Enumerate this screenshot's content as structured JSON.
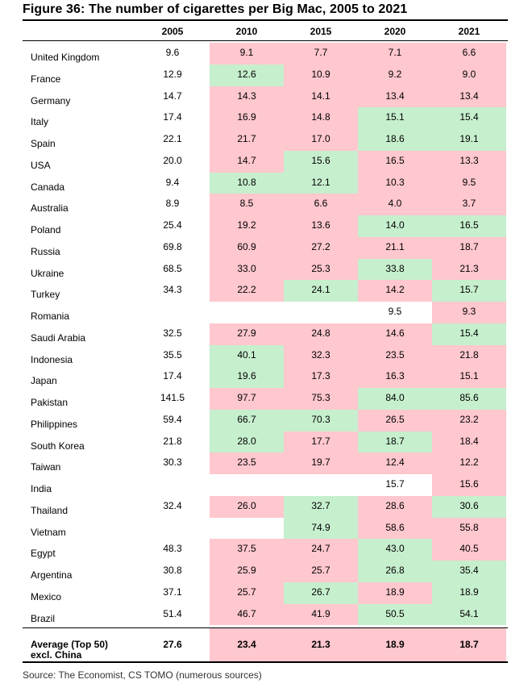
{
  "title": "Figure 36: The number of cigarettes per Big Mac, 2005 to 2021",
  "years": [
    "2005",
    "2010",
    "2015",
    "2020",
    "2021"
  ],
  "legend_colors": {
    "r": "#ffc7ce",
    "g": "#c6efce",
    "w": "#ffffff"
  },
  "rows": [
    {
      "country": "United Kingdom",
      "v2005": "9.6",
      "values": [
        "9.1",
        "7.7",
        "7.1",
        "6.6"
      ],
      "colors": [
        "r",
        "r",
        "r",
        "r"
      ]
    },
    {
      "country": "France",
      "v2005": "12.9",
      "values": [
        "12.6",
        "10.9",
        "9.2",
        "9.0"
      ],
      "colors": [
        "g",
        "r",
        "r",
        "r"
      ]
    },
    {
      "country": "Germany",
      "v2005": "14.7",
      "values": [
        "14.3",
        "14.1",
        "13.4",
        "13.4"
      ],
      "colors": [
        "r",
        "r",
        "r",
        "r"
      ]
    },
    {
      "country": "Italy",
      "v2005": "17.4",
      "values": [
        "16.9",
        "14.8",
        "15.1",
        "15.4"
      ],
      "colors": [
        "r",
        "r",
        "g",
        "g"
      ]
    },
    {
      "country": "Spain",
      "v2005": "22.1",
      "values": [
        "21.7",
        "17.0",
        "18.6",
        "19.1"
      ],
      "colors": [
        "r",
        "r",
        "g",
        "g"
      ]
    },
    {
      "country": "USA",
      "v2005": "20.0",
      "values": [
        "14.7",
        "15.6",
        "16.5",
        "13.3"
      ],
      "colors": [
        "r",
        "g",
        "r",
        "r"
      ]
    },
    {
      "country": "Canada",
      "v2005": "9.4",
      "values": [
        "10.8",
        "12.1",
        "10.3",
        "9.5"
      ],
      "colors": [
        "g",
        "g",
        "r",
        "r"
      ]
    },
    {
      "country": "Australia",
      "v2005": "8.9",
      "values": [
        "8.5",
        "6.6",
        "4.0",
        "3.7"
      ],
      "colors": [
        "r",
        "r",
        "r",
        "r"
      ]
    },
    {
      "country": "Poland",
      "v2005": "25.4",
      "values": [
        "19.2",
        "13.6",
        "14.0",
        "16.5"
      ],
      "colors": [
        "r",
        "r",
        "g",
        "g"
      ]
    },
    {
      "country": "Russia",
      "v2005": "69.8",
      "values": [
        "60.9",
        "27.2",
        "21.1",
        "18.7"
      ],
      "colors": [
        "r",
        "r",
        "r",
        "r"
      ]
    },
    {
      "country": "Ukraine",
      "v2005": "68.5",
      "values": [
        "33.0",
        "25.3",
        "33.8",
        "21.3"
      ],
      "colors": [
        "r",
        "r",
        "g",
        "r"
      ]
    },
    {
      "country": "Turkey",
      "v2005": "34.3",
      "values": [
        "22.2",
        "24.1",
        "14.2",
        "15.7"
      ],
      "colors": [
        "r",
        "g",
        "r",
        "g"
      ]
    },
    {
      "country": "Romania",
      "v2005": "",
      "values": [
        "",
        "",
        "9.5",
        "9.3"
      ],
      "colors": [
        "w",
        "w",
        "w",
        "r"
      ]
    },
    {
      "country": "Saudi Arabia",
      "v2005": "32.5",
      "values": [
        "27.9",
        "24.8",
        "14.6",
        "15.4"
      ],
      "colors": [
        "r",
        "r",
        "r",
        "g"
      ]
    },
    {
      "country": "Indonesia",
      "v2005": "35.5",
      "values": [
        "40.1",
        "32.3",
        "23.5",
        "21.8"
      ],
      "colors": [
        "g",
        "r",
        "r",
        "r"
      ]
    },
    {
      "country": "Japan",
      "v2005": "17.4",
      "values": [
        "19.6",
        "17.3",
        "16.3",
        "15.1"
      ],
      "colors": [
        "g",
        "r",
        "r",
        "r"
      ]
    },
    {
      "country": "Pakistan",
      "v2005": "141.5",
      "values": [
        "97.7",
        "75.3",
        "84.0",
        "85.6"
      ],
      "colors": [
        "r",
        "r",
        "g",
        "g"
      ]
    },
    {
      "country": "Philippines",
      "v2005": "59.4",
      "values": [
        "66.7",
        "70.3",
        "26.5",
        "23.2"
      ],
      "colors": [
        "g",
        "g",
        "r",
        "r"
      ]
    },
    {
      "country": "South Korea",
      "v2005": "21.8",
      "values": [
        "28.0",
        "17.7",
        "18.7",
        "18.4"
      ],
      "colors": [
        "g",
        "r",
        "g",
        "r"
      ]
    },
    {
      "country": "Taiwan",
      "v2005": "30.3",
      "values": [
        "23.5",
        "19.7",
        "12.4",
        "12.2"
      ],
      "colors": [
        "r",
        "r",
        "r",
        "r"
      ]
    },
    {
      "country": "India",
      "v2005": "",
      "values": [
        "",
        "",
        "15.7",
        "15.6"
      ],
      "colors": [
        "w",
        "w",
        "w",
        "r"
      ]
    },
    {
      "country": "Thailand",
      "v2005": "32.4",
      "values": [
        "26.0",
        "32.7",
        "28.6",
        "30.6"
      ],
      "colors": [
        "r",
        "g",
        "r",
        "g"
      ]
    },
    {
      "country": "Vietnam",
      "v2005": "",
      "values": [
        "",
        "74.9",
        "58.6",
        "55.8"
      ],
      "colors": [
        "w",
        "g",
        "r",
        "r"
      ]
    },
    {
      "country": "Egypt",
      "v2005": "48.3",
      "values": [
        "37.5",
        "24.7",
        "43.0",
        "40.5"
      ],
      "colors": [
        "r",
        "r",
        "g",
        "r"
      ]
    },
    {
      "country": "Argentina",
      "v2005": "30.8",
      "values": [
        "25.9",
        "25.7",
        "26.8",
        "35.4"
      ],
      "colors": [
        "r",
        "r",
        "g",
        "g"
      ]
    },
    {
      "country": "Mexico",
      "v2005": "37.1",
      "values": [
        "25.7",
        "26.7",
        "18.9",
        "18.9"
      ],
      "colors": [
        "r",
        "g",
        "r",
        "g"
      ]
    },
    {
      "country": "Brazil",
      "v2005": "51.4",
      "values": [
        "46.7",
        "41.9",
        "50.5",
        "54.1"
      ],
      "colors": [
        "r",
        "r",
        "g",
        "g"
      ]
    }
  ],
  "average": {
    "label": "Average (Top 50) excl. China",
    "v2005": "27.6",
    "values": [
      "23.4",
      "21.3",
      "18.9",
      "18.7"
    ],
    "colors": [
      "r",
      "r",
      "r",
      "r"
    ]
  },
  "source": "Source: The Economist, CS TOMO (numerous sources)"
}
